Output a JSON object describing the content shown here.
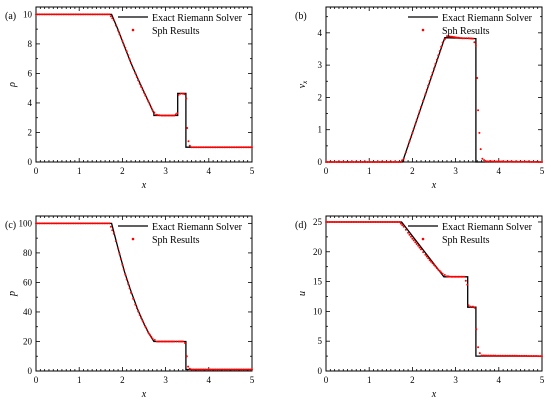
{
  "legend": {
    "exact": "Exact Riemann Solver",
    "sph": "Sph Results"
  },
  "chart_data": [
    {
      "type": "line",
      "panel_label": "(a)",
      "xlabel": "x",
      "ylabel": "ρ",
      "ylabel_sub": "",
      "xlim": [
        0,
        5
      ],
      "ylim": [
        0,
        10.5
      ],
      "xticks": [
        0,
        1,
        2,
        3,
        4,
        5
      ],
      "yticks": [
        0,
        2,
        4,
        6,
        8,
        10
      ],
      "legend_position": "top-right",
      "exact": {
        "x": [
          0,
          1.75,
          1.9,
          2.05,
          2.2,
          2.35,
          2.5,
          2.62,
          2.73,
          2.73,
          3.28,
          3.28,
          3.47,
          3.47,
          5
        ],
        "y": [
          10,
          10,
          8.95,
          7.8,
          6.7,
          5.7,
          4.75,
          4.0,
          3.3,
          3.15,
          3.15,
          4.65,
          4.65,
          1.0,
          1.0
        ]
      },
      "sph": {
        "x": [
          0,
          1.7,
          1.8,
          1.9,
          2.0,
          2.1,
          2.2,
          2.3,
          2.4,
          2.5,
          2.6,
          2.7,
          2.78,
          2.9,
          3.0,
          3.1,
          3.2,
          3.27,
          3.3,
          3.35,
          3.4,
          3.44,
          3.48,
          3.5,
          3.53,
          3.56,
          3.6,
          5
        ],
        "y": [
          10,
          10,
          9.6,
          8.9,
          8.2,
          7.5,
          6.7,
          6.0,
          5.3,
          4.7,
          4.1,
          3.5,
          3.2,
          3.15,
          3.15,
          3.15,
          3.15,
          3.3,
          4.55,
          4.62,
          4.62,
          4.6,
          4.3,
          2.3,
          1.4,
          1.1,
          1.0,
          1.0
        ]
      }
    },
    {
      "type": "line",
      "panel_label": "(b)",
      "xlabel": "x",
      "ylabel": "v",
      "ylabel_sub": "x",
      "xlim": [
        0,
        5
      ],
      "ylim": [
        0,
        4.8
      ],
      "xticks": [
        0,
        1,
        2,
        3,
        4,
        5
      ],
      "yticks": [
        0,
        1,
        2,
        3,
        4
      ],
      "legend_position": "top-right",
      "exact": {
        "x": [
          0,
          1.77,
          2.75,
          3.47,
          3.47,
          5
        ],
        "y": [
          0,
          0,
          3.85,
          3.82,
          0,
          0
        ]
      },
      "sph": {
        "x": [
          0,
          1.72,
          1.8,
          1.9,
          2.0,
          2.1,
          2.2,
          2.3,
          2.4,
          2.5,
          2.6,
          2.7,
          2.8,
          2.9,
          3.0,
          3.1,
          3.2,
          3.3,
          3.4,
          3.47,
          3.5,
          3.52,
          3.55,
          3.58,
          3.62,
          3.7,
          5
        ],
        "y": [
          0,
          0,
          0.1,
          0.5,
          0.9,
          1.3,
          1.7,
          2.1,
          2.5,
          2.9,
          3.3,
          3.7,
          3.9,
          3.88,
          3.86,
          3.84,
          3.83,
          3.83,
          3.82,
          3.6,
          2.6,
          1.6,
          0.9,
          0.4,
          0.1,
          0.02,
          0
        ]
      }
    },
    {
      "type": "line",
      "panel_label": "(c)",
      "xlabel": "x",
      "ylabel": "p",
      "ylabel_sub": "",
      "xlim": [
        0,
        5
      ],
      "ylim": [
        0,
        105
      ],
      "xticks": [
        0,
        1,
        2,
        3,
        4,
        5
      ],
      "yticks": [
        0,
        20,
        40,
        60,
        80,
        100
      ],
      "legend_position": "top-right",
      "exact": {
        "x": [
          0,
          1.75,
          1.9,
          2.05,
          2.2,
          2.35,
          2.5,
          2.62,
          2.73,
          3.47,
          3.47,
          5
        ],
        "y": [
          100,
          100,
          83,
          67,
          54,
          42,
          32,
          25,
          20,
          20,
          1,
          1
        ]
      },
      "sph": {
        "x": [
          0,
          1.7,
          1.8,
          1.9,
          2.0,
          2.1,
          2.2,
          2.3,
          2.4,
          2.5,
          2.6,
          2.7,
          2.8,
          2.9,
          3.0,
          3.1,
          3.2,
          3.3,
          3.4,
          3.45,
          3.49,
          3.52,
          3.56,
          3.6,
          5
        ],
        "y": [
          100,
          100,
          93,
          83,
          72,
          62,
          53,
          45,
          38,
          32,
          26,
          22,
          20,
          20,
          20,
          20,
          20,
          20,
          20,
          19,
          10,
          3,
          1.5,
          1,
          1
        ]
      }
    },
    {
      "type": "line",
      "panel_label": "(d)",
      "xlabel": "x",
      "ylabel": "u",
      "ylabel_sub": "",
      "xlim": [
        0,
        5
      ],
      "ylim": [
        0,
        26
      ],
      "xticks": [
        0,
        1,
        2,
        3,
        4,
        5
      ],
      "yticks": [
        0,
        5,
        10,
        15,
        20,
        25
      ],
      "legend_position": "top-right",
      "exact": {
        "x": [
          0,
          1.75,
          2.73,
          3.28,
          3.28,
          3.47,
          3.47,
          5
        ],
        "y": [
          25,
          25,
          15.8,
          15.8,
          10.7,
          10.7,
          2.5,
          2.5
        ]
      },
      "sph": {
        "x": [
          0,
          1.7,
          1.8,
          1.9,
          2.0,
          2.1,
          2.2,
          2.3,
          2.4,
          2.5,
          2.6,
          2.7,
          2.8,
          2.9,
          3.0,
          3.1,
          3.2,
          3.27,
          3.3,
          3.35,
          3.4,
          3.44,
          3.48,
          3.52,
          3.56,
          3.6,
          5
        ],
        "y": [
          25,
          25,
          24.2,
          23.2,
          22.2,
          21.3,
          20.4,
          19.5,
          18.6,
          17.8,
          17.0,
          16.3,
          15.9,
          15.8,
          15.8,
          15.8,
          15.8,
          14.5,
          11.0,
          10.8,
          10.8,
          10.6,
          7.0,
          4.0,
          3.0,
          2.6,
          2.5
        ]
      }
    }
  ]
}
